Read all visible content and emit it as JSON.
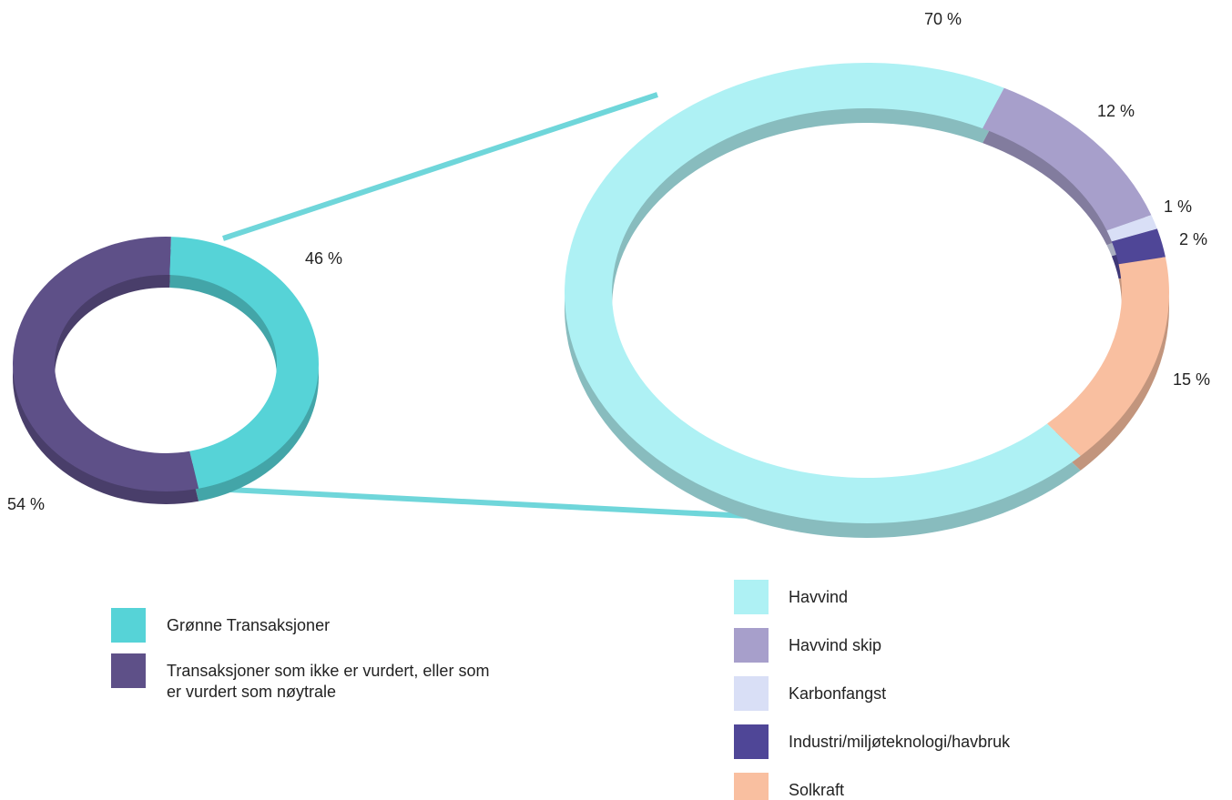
{
  "chart_data": [
    {
      "type": "donut",
      "categories": [
        "Grønne Transaksjoner",
        "Transaksjoner som ikke er vurdert, eller som er vurdert som nøytrale"
      ],
      "values": [
        46,
        54
      ],
      "value_labels": [
        "46 %",
        "54 %"
      ],
      "colors": [
        "#56d3d7",
        "#5e5088"
      ]
    },
    {
      "type": "donut",
      "categories": [
        "Havvind",
        "Havvind skip",
        "Karbonfangst",
        "Industri/miljøteknologi/havbruk",
        "Solkraft"
      ],
      "values": [
        70,
        12,
        1,
        2,
        15
      ],
      "value_labels": [
        "70 %",
        "12 %",
        "1 %",
        "2 %",
        "15 %"
      ],
      "colors": [
        "#aef1f4",
        "#a79fcb",
        "#d9dff6",
        "#4f4697",
        "#f9bfa0"
      ]
    }
  ]
}
